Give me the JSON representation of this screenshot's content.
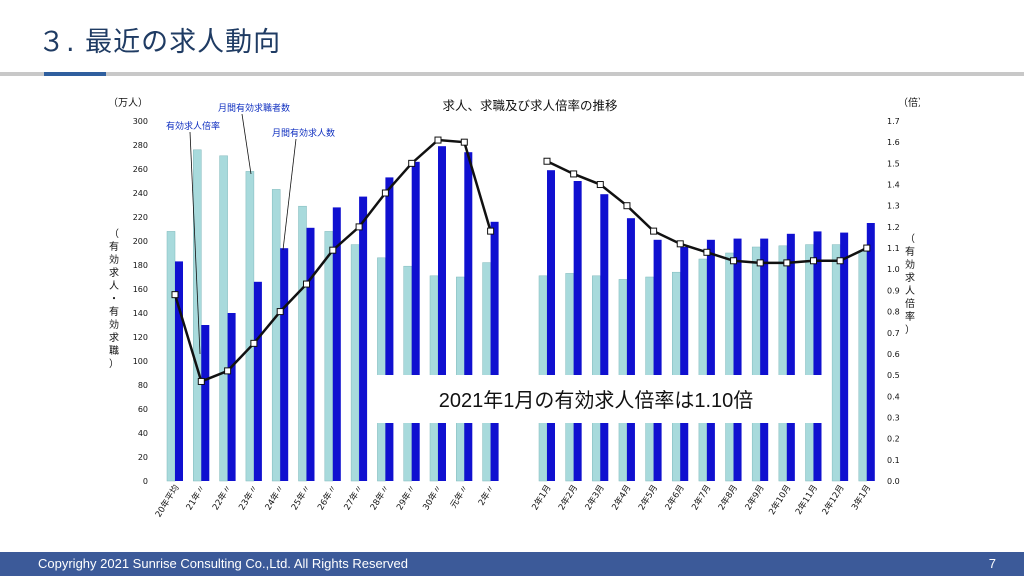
{
  "slide": {
    "title": "３. 最近の求人動向",
    "footer": "Copyrighy 2021 Sunrise Consulting Co.,Ltd. All Rights Reserved",
    "page_number": "7"
  },
  "colors": {
    "seekers_bar": "#a8dadc",
    "openings_bar": "#1010d0",
    "ratio_line": "#111111",
    "footer_bg": "#3c5a99",
    "title_text": "#1f3b63"
  },
  "chart_data": {
    "type": "bar",
    "title": "求人、求職及び求人倍率の推移",
    "left_unit": "（万人）",
    "right_unit": "（倍）",
    "left_axis_label": "（有効求人・有効求職）",
    "right_axis_label": "（有効求人倍率）",
    "ylim_left": [
      0,
      300
    ],
    "yticks_left": [
      "0",
      "20",
      "40",
      "60",
      "80",
      "100",
      "120",
      "140",
      "160",
      "180",
      "200",
      "220",
      "240",
      "260",
      "280",
      "300"
    ],
    "ylim_right": [
      0,
      1.7
    ],
    "yticks_right": [
      "0.0",
      "0.1",
      "0.2",
      "0.3",
      "0.4",
      "0.5",
      "0.6",
      "0.7",
      "0.8",
      "0.9",
      "1.0",
      "1.1",
      "1.2",
      "1.3",
      "1.4",
      "1.5",
      "1.6",
      "1.7"
    ],
    "categories": [
      "20年平均",
      "21年〃",
      "22年〃",
      "23年〃",
      "24年〃",
      "25年〃",
      "26年〃",
      "27年〃",
      "28年〃",
      "29年〃",
      "30年〃",
      "元年〃",
      "2年〃",
      "2年1月",
      "2年2月",
      "2年3月",
      "2年4月",
      "2年5月",
      "2年6月",
      "2年7月",
      "2年8月",
      "2年9月",
      "2年10月",
      "2年11月",
      "2年12月",
      "3年1月"
    ],
    "series": [
      {
        "name": "月間有効求職者数",
        "axis": "left",
        "values": [
          208,
          276,
          271,
          258,
          243,
          229,
          208,
          197,
          186,
          179,
          171,
          170,
          182,
          171,
          173,
          171,
          168,
          170,
          174,
          185,
          190,
          195,
          196,
          197,
          197,
          192
        ]
      },
      {
        "name": "月間有効求人数",
        "axis": "left",
        "values": [
          183,
          130,
          140,
          166,
          194,
          211,
          228,
          237,
          253,
          266,
          279,
          274,
          216,
          259,
          250,
          239,
          219,
          201,
          195,
          201,
          202,
          202,
          206,
          208,
          207,
          215
        ]
      },
      {
        "name": "有効求人倍率",
        "axis": "right",
        "type": "line",
        "values": [
          0.88,
          0.47,
          0.52,
          0.65,
          0.8,
          0.93,
          1.09,
          1.2,
          1.36,
          1.5,
          1.61,
          1.6,
          1.18,
          1.51,
          1.45,
          1.4,
          1.3,
          1.18,
          1.12,
          1.08,
          1.04,
          1.03,
          1.03,
          1.04,
          1.04,
          1.1
        ]
      }
    ],
    "gap_after_index": 12,
    "legend_labels": [
      "有効求人倍率",
      "月間有効求職者数",
      "月間有効求人数"
    ],
    "annotation": "2021年1月の有効求人倍率は1.10倍"
  }
}
